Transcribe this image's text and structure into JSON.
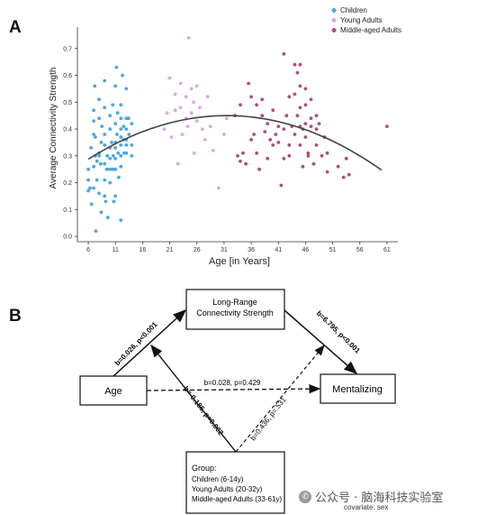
{
  "panelA": {
    "letter": "A",
    "chart_data": {
      "type": "scatter",
      "title": "",
      "xlabel": "Age [in Years]",
      "ylabel": "Average Connectivity Strength",
      "xlim": [
        4,
        63
      ],
      "ylim": [
        -0.02,
        0.78
      ],
      "xticks": [
        6,
        11,
        16,
        21,
        26,
        31,
        36,
        41,
        46,
        51,
        56,
        61
      ],
      "yticks": [
        0.0,
        0.1,
        0.2,
        0.3,
        0.4,
        0.5,
        0.6,
        0.7
      ],
      "grid": false,
      "legend_position": "top-right",
      "series": [
        {
          "name": "Children",
          "color": "#4aa8dc",
          "points": [
            [
              6,
              0.17
            ],
            [
              6,
              0.21
            ],
            [
              6,
              0.25
            ],
            [
              6.3,
              0.18
            ],
            [
              6.5,
              0.33
            ],
            [
              6.6,
              0.12
            ],
            [
              7,
              0.47
            ],
            [
              7,
              0.43
            ],
            [
              7,
              0.38
            ],
            [
              7,
              0.26
            ],
            [
              7,
              0.18
            ],
            [
              7.2,
              0.56
            ],
            [
              7.3,
              0.37
            ],
            [
              7.3,
              0.3
            ],
            [
              7.4,
              0.02
            ],
            [
              7.6,
              0.28
            ],
            [
              7.6,
              0.21
            ],
            [
              8,
              0.51
            ],
            [
              8,
              0.44
            ],
            [
              8,
              0.31
            ],
            [
              8,
              0.3
            ],
            [
              8,
              0.16
            ],
            [
              8.3,
              0.27
            ],
            [
              8.4,
              0.35
            ],
            [
              8.4,
              0.09
            ],
            [
              8.5,
              0.41
            ],
            [
              9,
              0.58
            ],
            [
              9,
              0.48
            ],
            [
              9,
              0.38
            ],
            [
              9,
              0.34
            ],
            [
              9,
              0.27
            ],
            [
              9,
              0.21
            ],
            [
              9,
              0.15
            ],
            [
              9.2,
              0.13
            ],
            [
              9.4,
              0.25
            ],
            [
              9.5,
              0.3
            ],
            [
              9.6,
              0.07
            ],
            [
              10,
              0.45
            ],
            [
              10,
              0.4
            ],
            [
              10,
              0.33
            ],
            [
              10,
              0.29
            ],
            [
              10,
              0.25
            ],
            [
              10,
              0.2
            ],
            [
              10.3,
              0.35
            ],
            [
              10.5,
              0.49
            ],
            [
              10.5,
              0.25
            ],
            [
              10.6,
              0.3
            ],
            [
              10.7,
              0.13
            ],
            [
              11,
              0.56
            ],
            [
              11,
              0.42
            ],
            [
              11,
              0.35
            ],
            [
              11,
              0.33
            ],
            [
              11,
              0.29
            ],
            [
              11,
              0.25
            ],
            [
              11,
              0.15
            ],
            [
              11.2,
              0.63
            ],
            [
              11.3,
              0.38
            ],
            [
              11.4,
              0.46
            ],
            [
              11.5,
              0.31
            ],
            [
              11.6,
              0.22
            ],
            [
              12,
              0.49
            ],
            [
              12,
              0.44
            ],
            [
              12,
              0.4
            ],
            [
              12,
              0.37
            ],
            [
              12,
              0.34
            ],
            [
              12,
              0.3
            ],
            [
              12,
              0.26
            ],
            [
              12,
              0.06
            ],
            [
              12.3,
              0.6
            ],
            [
              12.5,
              0.41
            ],
            [
              12.5,
              0.36
            ],
            [
              12.6,
              0.31
            ],
            [
              13,
              0.55
            ],
            [
              13,
              0.44
            ],
            [
              13,
              0.4
            ],
            [
              13,
              0.36
            ],
            [
              13,
              0.34
            ],
            [
              13,
              0.31
            ],
            [
              13.4,
              0.44
            ],
            [
              13.5,
              0.38
            ],
            [
              14,
              0.42
            ],
            [
              14,
              0.34
            ],
            [
              14,
              0.3
            ]
          ]
        },
        {
          "name": "Young Adults",
          "color": "#dba8df",
          "points": [
            [
              20,
              0.4
            ],
            [
              20.5,
              0.46
            ],
            [
              21,
              0.59
            ],
            [
              21.3,
              0.37
            ],
            [
              22,
              0.53
            ],
            [
              22,
              0.47
            ],
            [
              22.5,
              0.27
            ],
            [
              23,
              0.48
            ],
            [
              23,
              0.57
            ],
            [
              23.3,
              0.38
            ],
            [
              24,
              0.52
            ],
            [
              24,
              0.44
            ],
            [
              24.3,
              0.41
            ],
            [
              24.5,
              0.74
            ],
            [
              25,
              0.55
            ],
            [
              25,
              0.46
            ],
            [
              25.4,
              0.5
            ],
            [
              25.5,
              0.31
            ],
            [
              26,
              0.56
            ],
            [
              26,
              0.43
            ],
            [
              26.5,
              0.48
            ],
            [
              27,
              0.4
            ],
            [
              27.5,
              0.36
            ],
            [
              28,
              0.52
            ],
            [
              28.5,
              0.41
            ],
            [
              29,
              0.32
            ],
            [
              30,
              0.18
            ],
            [
              31,
              0.38
            ],
            [
              31.5,
              0.44
            ]
          ]
        },
        {
          "name": "Middle-aged Adults",
          "color": "#b04f76",
          "points": [
            [
              33,
              0.45
            ],
            [
              33.5,
              0.3
            ],
            [
              34,
              0.28
            ],
            [
              34,
              0.49
            ],
            [
              34.5,
              0.31
            ],
            [
              35,
              0.27
            ],
            [
              35.5,
              0.57
            ],
            [
              36,
              0.52
            ],
            [
              36,
              0.36
            ],
            [
              36.5,
              0.38
            ],
            [
              37,
              0.49
            ],
            [
              37,
              0.31
            ],
            [
              37.5,
              0.25
            ],
            [
              38,
              0.45
            ],
            [
              38,
              0.51
            ],
            [
              38.5,
              0.39
            ],
            [
              39,
              0.29
            ],
            [
              39,
              0.42
            ],
            [
              39.5,
              0.36
            ],
            [
              40,
              0.34
            ],
            [
              40,
              0.47
            ],
            [
              40.5,
              0.38
            ],
            [
              41,
              0.41
            ],
            [
              41,
              0.35
            ],
            [
              41.5,
              0.19
            ],
            [
              42,
              0.68
            ],
            [
              42,
              0.4
            ],
            [
              42,
              0.29
            ],
            [
              42.5,
              0.45
            ],
            [
              43,
              0.52
            ],
            [
              43,
              0.34
            ],
            [
              43,
              0.3
            ],
            [
              43.5,
              0.41
            ],
            [
              44,
              0.53
            ],
            [
              44,
              0.64
            ],
            [
              44,
              0.38
            ],
            [
              44.5,
              0.61
            ],
            [
              44.5,
              0.45
            ],
            [
              45,
              0.64
            ],
            [
              45,
              0.56
            ],
            [
              45,
              0.48
            ],
            [
              45,
              0.41
            ],
            [
              45,
              0.34
            ],
            [
              45.5,
              0.26
            ],
            [
              45.5,
              0.4
            ],
            [
              46,
              0.49
            ],
            [
              46,
              0.55
            ],
            [
              46,
              0.42
            ],
            [
              46,
              0.37
            ],
            [
              46.5,
              0.31
            ],
            [
              46.5,
              0.3
            ],
            [
              47,
              0.44
            ],
            [
              47,
              0.51
            ],
            [
              47,
              0.41
            ],
            [
              47.5,
              0.27
            ],
            [
              48,
              0.45
            ],
            [
              48,
              0.4
            ],
            [
              48,
              0.34
            ],
            [
              48.5,
              0.42
            ],
            [
              49,
              0.3
            ],
            [
              49.5,
              0.37
            ],
            [
              50,
              0.31
            ],
            [
              50,
              0.24
            ],
            [
              52,
              0.26
            ],
            [
              53,
              0.22
            ],
            [
              53.5,
              0.29
            ],
            [
              54,
              0.23
            ],
            [
              61,
              0.41
            ]
          ]
        }
      ],
      "fit_curve": {
        "type": "quadratic",
        "color": "#444444",
        "x_range": [
          6,
          60
        ],
        "vertex_x": 31.5,
        "vertex_y": 0.45,
        "a": -0.00025
      }
    }
  },
  "panelB": {
    "letter": "B",
    "boxes": {
      "lrcs_line1": "Long-Range",
      "lrcs_line2": "Connectivity Strength",
      "age": "Age",
      "mentalizing": "Mentalizing",
      "group_title": "Group:",
      "group_children": "Children (6-14y)",
      "group_young": "Young Adults (20-32y)",
      "group_middle": "Middle-aged Adults (33-61y)"
    },
    "paths": {
      "age_to_lrcs": "b=0.026, p<0.001",
      "lrcs_to_mentalizing": "b=6.795, p<0.001",
      "age_to_mentalizing": "b=0.028, p=0.429",
      "group_to_path_a": "b=-0.185, p=0.002",
      "group_to_path_b": "b=0.436, p=.531"
    },
    "covariate": "covariate: sex"
  },
  "watermark": {
    "icon": "wechat-icon",
    "text": "公众号 · 脑海科技实验室"
  }
}
